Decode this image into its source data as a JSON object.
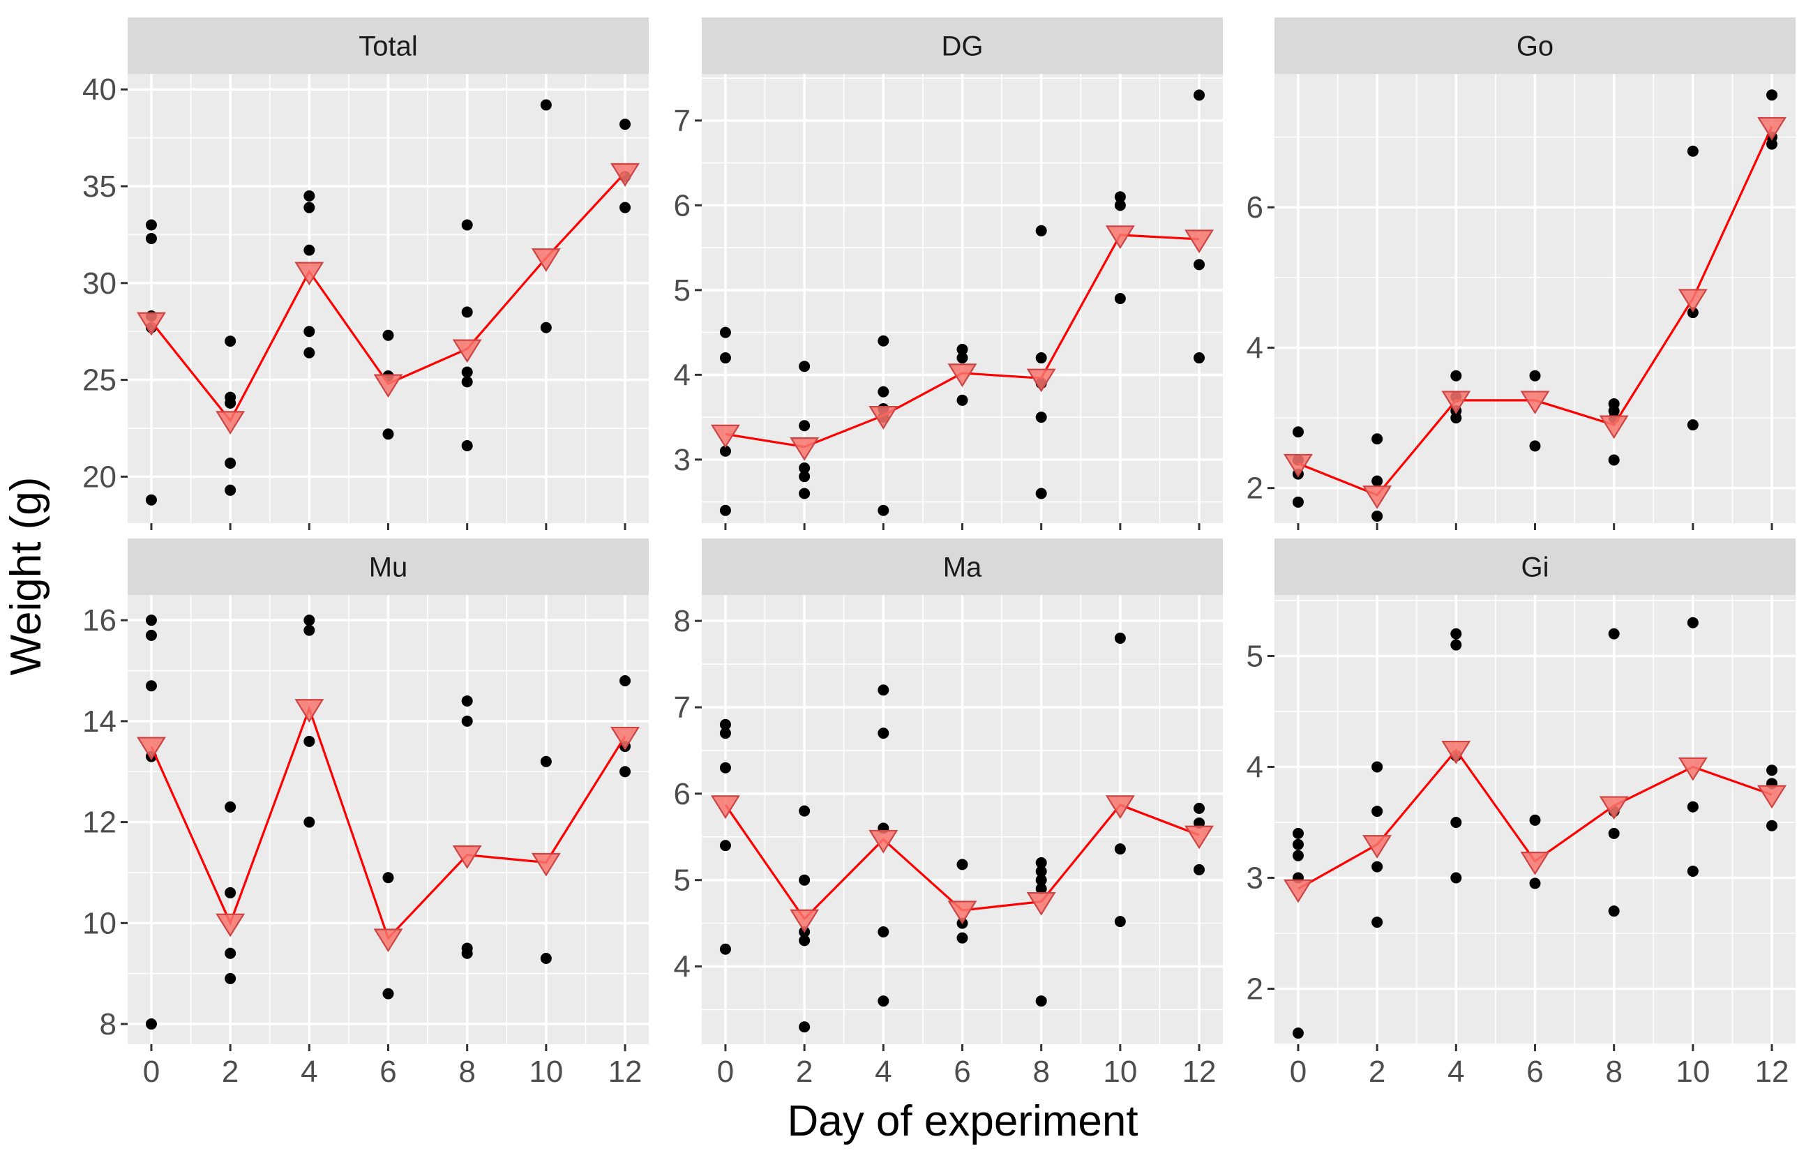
{
  "chart_data": {
    "type": "scatter",
    "xlabel": "Day of experiment",
    "ylabel": "Weight (g)",
    "x_ticks": [
      0,
      2,
      4,
      6,
      8,
      10,
      12
    ],
    "xlim": [
      -0.6,
      12.6
    ],
    "grid": true,
    "colors": {
      "points": "#000000",
      "mean_line": "#FF0000",
      "mean_marker_fill": "#F8766D",
      "mean_marker_stroke": "#CC4444"
    },
    "panels": [
      {
        "title": "Total",
        "ylim": [
          17.6,
          40.8
        ],
        "y_ticks": [
          20,
          25,
          30,
          35,
          40
        ],
        "points": [
          [
            0,
            33.0
          ],
          [
            0,
            32.3
          ],
          [
            0,
            28.3
          ],
          [
            0,
            27.7
          ],
          [
            0,
            18.8
          ],
          [
            2,
            27.0
          ],
          [
            2,
            24.1
          ],
          [
            2,
            23.8
          ],
          [
            2,
            20.7
          ],
          [
            2,
            19.3
          ],
          [
            4,
            34.5
          ],
          [
            4,
            33.9
          ],
          [
            4,
            31.7
          ],
          [
            4,
            27.5
          ],
          [
            4,
            26.4
          ],
          [
            6,
            27.3
          ],
          [
            6,
            25.2
          ],
          [
            6,
            22.2
          ],
          [
            8,
            33.0
          ],
          [
            8,
            28.5
          ],
          [
            8,
            25.4
          ],
          [
            8,
            24.9
          ],
          [
            8,
            21.6
          ],
          [
            10,
            39.2
          ],
          [
            10,
            27.7
          ],
          [
            12,
            38.2
          ],
          [
            12,
            35.5
          ],
          [
            12,
            33.9
          ]
        ],
        "mean": [
          [
            0,
            28.0
          ],
          [
            2,
            22.9
          ],
          [
            4,
            30.6
          ],
          [
            6,
            24.8
          ],
          [
            8,
            26.6
          ],
          [
            10,
            31.3
          ],
          [
            12,
            35.7
          ]
        ]
      },
      {
        "title": "DG",
        "ylim": [
          2.25,
          7.55
        ],
        "y_ticks": [
          3,
          4,
          5,
          6,
          7
        ],
        "points": [
          [
            0,
            4.5
          ],
          [
            0,
            4.2
          ],
          [
            0,
            3.1
          ],
          [
            0,
            2.4
          ],
          [
            2,
            4.1
          ],
          [
            2,
            3.4
          ],
          [
            2,
            2.9
          ],
          [
            2,
            2.8
          ],
          [
            2,
            2.6
          ],
          [
            4,
            4.4
          ],
          [
            4,
            3.8
          ],
          [
            4,
            3.6
          ],
          [
            4,
            3.5
          ],
          [
            4,
            2.4
          ],
          [
            6,
            4.3
          ],
          [
            6,
            4.2
          ],
          [
            6,
            3.7
          ],
          [
            8,
            5.7
          ],
          [
            8,
            4.2
          ],
          [
            8,
            3.9
          ],
          [
            8,
            3.5
          ],
          [
            8,
            2.6
          ],
          [
            10,
            6.1
          ],
          [
            10,
            6.0
          ],
          [
            10,
            4.9
          ],
          [
            12,
            7.3
          ],
          [
            12,
            5.3
          ],
          [
            12,
            4.2
          ]
        ],
        "mean": [
          [
            0,
            3.3
          ],
          [
            2,
            3.15
          ],
          [
            4,
            3.52
          ],
          [
            6,
            4.02
          ],
          [
            8,
            3.96
          ],
          [
            10,
            5.65
          ],
          [
            12,
            5.6
          ]
        ]
      },
      {
        "title": "Go",
        "ylim": [
          1.5,
          7.9
        ],
        "y_ticks": [
          2,
          4,
          6
        ],
        "points": [
          [
            0,
            2.8
          ],
          [
            0,
            2.4
          ],
          [
            0,
            2.2
          ],
          [
            0,
            1.8
          ],
          [
            2,
            2.7
          ],
          [
            2,
            2.1
          ],
          [
            2,
            1.6
          ],
          [
            4,
            3.6
          ],
          [
            4,
            3.3
          ],
          [
            4,
            3.1
          ],
          [
            4,
            3.0
          ],
          [
            6,
            3.6
          ],
          [
            6,
            2.6
          ],
          [
            8,
            3.2
          ],
          [
            8,
            3.1
          ],
          [
            8,
            3.0
          ],
          [
            8,
            2.4
          ],
          [
            10,
            6.8
          ],
          [
            10,
            4.5
          ],
          [
            10,
            2.9
          ],
          [
            12,
            7.6
          ],
          [
            12,
            7.0
          ],
          [
            12,
            6.9
          ]
        ],
        "mean": [
          [
            0,
            2.35
          ],
          [
            2,
            1.9
          ],
          [
            4,
            3.25
          ],
          [
            6,
            3.25
          ],
          [
            8,
            2.9
          ],
          [
            10,
            4.7
          ],
          [
            12,
            7.15
          ]
        ]
      },
      {
        "title": "Mu",
        "ylim": [
          7.6,
          16.5
        ],
        "y_ticks": [
          8,
          10,
          12,
          14,
          16
        ],
        "points": [
          [
            0,
            16.0
          ],
          [
            0,
            15.7
          ],
          [
            0,
            14.7
          ],
          [
            0,
            13.3
          ],
          [
            0,
            8.0
          ],
          [
            2,
            12.3
          ],
          [
            2,
            10.6
          ],
          [
            2,
            9.4
          ],
          [
            2,
            8.9
          ],
          [
            4,
            16.0
          ],
          [
            4,
            15.8
          ],
          [
            4,
            13.6
          ],
          [
            4,
            12.0
          ],
          [
            6,
            10.9
          ],
          [
            6,
            8.6
          ],
          [
            8,
            14.4
          ],
          [
            8,
            14.0
          ],
          [
            8,
            9.5
          ],
          [
            8,
            9.4
          ],
          [
            10,
            13.2
          ],
          [
            10,
            9.3
          ],
          [
            12,
            14.8
          ],
          [
            12,
            13.5
          ],
          [
            12,
            13.0
          ]
        ],
        "mean": [
          [
            0,
            13.5
          ],
          [
            2,
            10.0
          ],
          [
            4,
            14.25
          ],
          [
            6,
            9.7
          ],
          [
            8,
            11.35
          ],
          [
            10,
            11.2
          ],
          [
            12,
            13.7
          ]
        ]
      },
      {
        "title": "Ma",
        "ylim": [
          3.1,
          8.3
        ],
        "y_ticks": [
          4,
          5,
          6,
          7,
          8
        ],
        "points": [
          [
            0,
            6.8
          ],
          [
            0,
            6.7
          ],
          [
            0,
            6.3
          ],
          [
            0,
            5.4
          ],
          [
            0,
            4.2
          ],
          [
            2,
            5.8
          ],
          [
            2,
            5.0
          ],
          [
            2,
            4.4
          ],
          [
            2,
            4.3
          ],
          [
            2,
            3.3
          ],
          [
            4,
            7.2
          ],
          [
            4,
            6.7
          ],
          [
            4,
            5.6
          ],
          [
            4,
            4.4
          ],
          [
            4,
            3.6
          ],
          [
            6,
            5.18
          ],
          [
            6,
            4.5
          ],
          [
            6,
            4.33
          ],
          [
            8,
            5.2
          ],
          [
            8,
            5.1
          ],
          [
            8,
            5.0
          ],
          [
            8,
            4.9
          ],
          [
            8,
            3.6
          ],
          [
            10,
            7.8
          ],
          [
            10,
            5.36
          ],
          [
            10,
            4.52
          ],
          [
            12,
            5.83
          ],
          [
            12,
            5.66
          ],
          [
            12,
            5.12
          ]
        ],
        "mean": [
          [
            0,
            5.87
          ],
          [
            2,
            4.55
          ],
          [
            4,
            5.47
          ],
          [
            6,
            4.65
          ],
          [
            8,
            4.75
          ],
          [
            10,
            5.87
          ],
          [
            12,
            5.52
          ]
        ]
      },
      {
        "title": "Gi",
        "ylim": [
          1.5,
          5.55
        ],
        "y_ticks": [
          2,
          3,
          4,
          5
        ],
        "points": [
          [
            0,
            3.4
          ],
          [
            0,
            3.3
          ],
          [
            0,
            3.2
          ],
          [
            0,
            3.0
          ],
          [
            0,
            1.6
          ],
          [
            2,
            4.0
          ],
          [
            2,
            3.6
          ],
          [
            2,
            3.1
          ],
          [
            2,
            2.6
          ],
          [
            4,
            5.2
          ],
          [
            4,
            5.1
          ],
          [
            4,
            4.1
          ],
          [
            4,
            3.5
          ],
          [
            4,
            3.0
          ],
          [
            6,
            3.52
          ],
          [
            6,
            2.95
          ],
          [
            8,
            5.2
          ],
          [
            8,
            3.6
          ],
          [
            8,
            3.4
          ],
          [
            8,
            2.7
          ],
          [
            10,
            5.3
          ],
          [
            10,
            3.64
          ],
          [
            10,
            3.06
          ],
          [
            12,
            3.97
          ],
          [
            12,
            3.85
          ],
          [
            12,
            3.47
          ]
        ],
        "mean": [
          [
            0,
            2.9
          ],
          [
            2,
            3.3
          ],
          [
            4,
            4.15
          ],
          [
            6,
            3.15
          ],
          [
            8,
            3.65
          ],
          [
            10,
            4.0
          ],
          [
            12,
            3.75
          ]
        ]
      }
    ]
  }
}
